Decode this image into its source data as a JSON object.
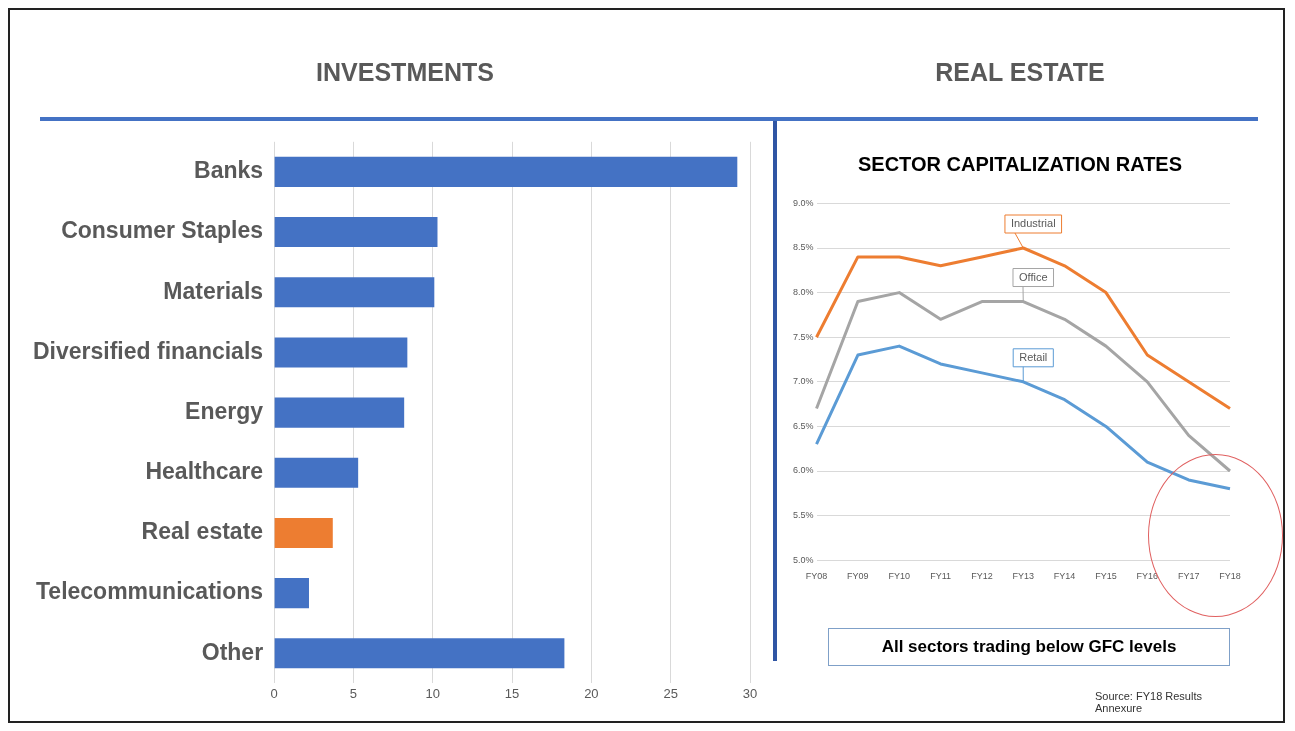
{
  "chart_data": [
    {
      "type": "bar",
      "title": "INVESTMENTS",
      "orientation": "horizontal",
      "categories": [
        "Banks",
        "Consumer Staples",
        "Materials",
        "Diversified financials",
        "Energy",
        "Healthcare",
        "Real estate",
        "Telecommunications",
        "Other"
      ],
      "values": [
        29.2,
        10.3,
        10.1,
        8.4,
        8.2,
        5.3,
        3.7,
        2.2,
        18.3
      ],
      "colors": [
        "#4472c4",
        "#4472c4",
        "#4472c4",
        "#4472c4",
        "#4472c4",
        "#4472c4",
        "#ed7d31",
        "#4472c4",
        "#4472c4"
      ],
      "xlim": [
        0,
        30
      ],
      "xticks": [
        0,
        5,
        10,
        15,
        20,
        25,
        30
      ],
      "grid": "x",
      "legend": false
    },
    {
      "type": "line",
      "title": "REAL ESTATE",
      "subtitle": "SECTOR CAPITALIZATION RATES",
      "categories": [
        "FY08",
        "FY09",
        "FY10",
        "FY11",
        "FY12",
        "FY13",
        "FY14",
        "FY15",
        "FY16",
        "FY17",
        "FY18"
      ],
      "series": [
        {
          "name": "Industrial",
          "color": "#ed7d31",
          "values": [
            7.5,
            8.4,
            8.4,
            8.3,
            8.4,
            8.5,
            8.3,
            8.0,
            7.3,
            7.0,
            6.7
          ]
        },
        {
          "name": "Office",
          "color": "#a5a5a5",
          "values": [
            6.7,
            7.9,
            8.0,
            7.7,
            7.9,
            7.9,
            7.7,
            7.4,
            7.0,
            6.4,
            6.0
          ]
        },
        {
          "name": "Retail",
          "color": "#5b9bd5",
          "values": [
            6.3,
            7.3,
            7.4,
            7.2,
            7.1,
            7.0,
            6.8,
            6.5,
            6.1,
            5.9,
            5.8
          ]
        }
      ],
      "ylim": [
        5.0,
        9.0
      ],
      "yticks": [
        {
          "value": 5.0,
          "label": "5.0%"
        },
        {
          "value": 5.5,
          "label": "5.5%"
        },
        {
          "value": 6.0,
          "label": "6.0%"
        },
        {
          "value": 6.5,
          "label": "6.5%"
        },
        {
          "value": 7.0,
          "label": "7.0%"
        },
        {
          "value": 7.5,
          "label": "7.5%"
        },
        {
          "value": 8.0,
          "label": "8.0%"
        },
        {
          "value": 8.5,
          "label": "8.5%"
        },
        {
          "value": 9.0,
          "label": "9.0%"
        }
      ],
      "grid": "y",
      "legend": false,
      "marker": "none",
      "line_style": "solid",
      "annotations": [
        "All sectors trading below GFC levels",
        "Source: FY18 Results Annexure"
      ]
    }
  ]
}
